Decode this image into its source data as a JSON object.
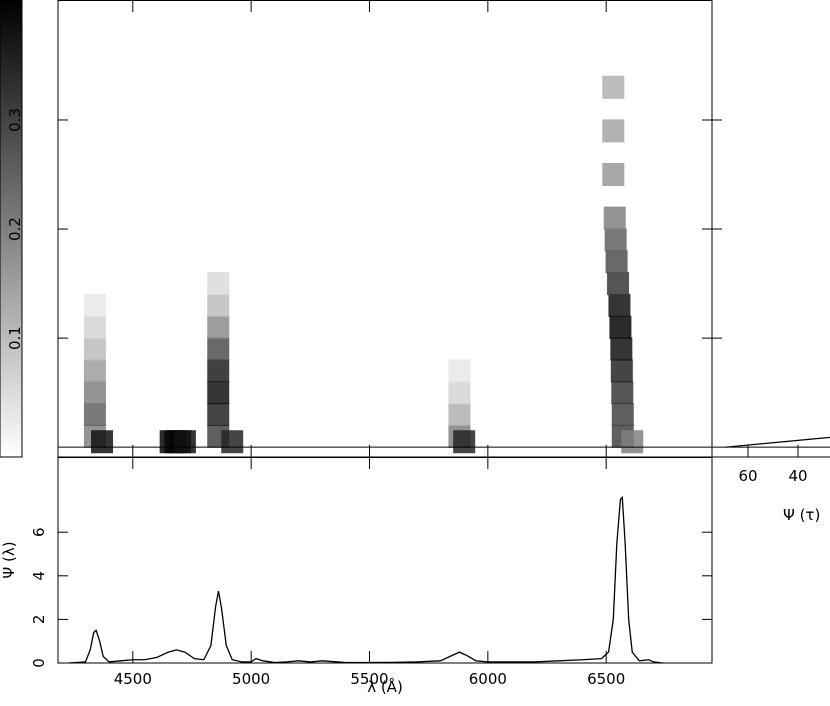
{
  "chart_data": [
    {
      "type": "heatmap",
      "xlim": [
        4184,
        6947
      ],
      "ylim": [
        -0.009,
        0.41
      ],
      "yticks": [
        0.1,
        0.2,
        0.3
      ],
      "x": [
        4340,
        4340,
        4340,
        4340,
        4340,
        4340,
        4340,
        4370,
        4660,
        4680,
        4700,
        4720,
        4861,
        4861,
        4861,
        4861,
        4861,
        4861,
        4861,
        4861,
        4920,
        5880,
        5880,
        5880,
        5880,
        5900,
        6570,
        6570,
        6568,
        6566,
        6564,
        6560,
        6556,
        6550,
        6544,
        6540,
        6536,
        6530,
        6530,
        6530,
        6610
      ],
      "y": [
        0.01,
        0.03,
        0.05,
        0.07,
        0.09,
        0.11,
        0.13,
        0.005,
        0.005,
        0.005,
        0.005,
        0.005,
        0.01,
        0.03,
        0.05,
        0.07,
        0.09,
        0.11,
        0.13,
        0.15,
        0.005,
        0.01,
        0.03,
        0.05,
        0.07,
        0.005,
        0.01,
        0.03,
        0.05,
        0.07,
        0.09,
        0.11,
        0.13,
        0.15,
        0.17,
        0.19,
        0.21,
        0.25,
        0.29,
        0.33,
        0.005
      ],
      "values": [
        0.2,
        0.25,
        0.2,
        0.15,
        0.1,
        0.06,
        0.03,
        0.38,
        0.4,
        0.4,
        0.4,
        0.38,
        0.3,
        0.35,
        0.38,
        0.36,
        0.28,
        0.18,
        0.1,
        0.05,
        0.35,
        0.2,
        0.12,
        0.06,
        0.03,
        0.35,
        0.3,
        0.3,
        0.32,
        0.35,
        0.38,
        0.4,
        0.38,
        0.32,
        0.28,
        0.25,
        0.2,
        0.16,
        0.14,
        0.12,
        0.2
      ]
    },
    {
      "type": "line",
      "xlabel": "λ (Å)",
      "ylabel": "Ψ (λ)",
      "xlim": [
        4184,
        6947
      ],
      "xticks": [
        4500,
        5000,
        5500,
        6000,
        6500
      ],
      "ylim": [
        0,
        9.45
      ],
      "yticks": [
        0,
        2,
        4,
        6
      ],
      "x": [
        4230,
        4300,
        4320,
        4335,
        4345,
        4360,
        4375,
        4400,
        4450,
        4500,
        4550,
        4600,
        4650,
        4685,
        4720,
        4760,
        4800,
        4830,
        4850,
        4862,
        4875,
        4895,
        4920,
        4960,
        5000,
        5020,
        5050,
        5100,
        5150,
        5200,
        5250,
        5300,
        5400,
        5500,
        5600,
        5700,
        5800,
        5850,
        5880,
        5910,
        5950,
        6000,
        6100,
        6200,
        6300,
        6400,
        6480,
        6510,
        6530,
        6545,
        6560,
        6568,
        6580,
        6595,
        6610,
        6640,
        6680,
        6700,
        6740
      ],
      "values": [
        0,
        0.05,
        0.6,
        1.4,
        1.5,
        1.0,
        0.3,
        0.05,
        0.1,
        0.15,
        0.15,
        0.25,
        0.5,
        0.6,
        0.5,
        0.2,
        0.15,
        0.8,
        2.6,
        3.3,
        2.5,
        0.8,
        0.15,
        0.05,
        0.05,
        0.2,
        0.1,
        0.02,
        0.05,
        0.1,
        0.05,
        0.1,
        0.02,
        0.02,
        0.03,
        0.05,
        0.1,
        0.35,
        0.5,
        0.35,
        0.1,
        0.05,
        0.05,
        0.05,
        0.1,
        0.15,
        0.2,
        0.5,
        2.0,
        5.5,
        7.5,
        7.6,
        5.5,
        2.0,
        0.5,
        0.1,
        0.15,
        0.05,
        0
      ]
    },
    {
      "type": "profile",
      "xlabel": "Ψ (τ)",
      "xlim": [
        74.4,
        27.2
      ],
      "xticks": [
        60,
        40
      ],
      "values": [
        69,
        27.2
      ],
      "delays": [
        0,
        0.009
      ]
    }
  ]
}
